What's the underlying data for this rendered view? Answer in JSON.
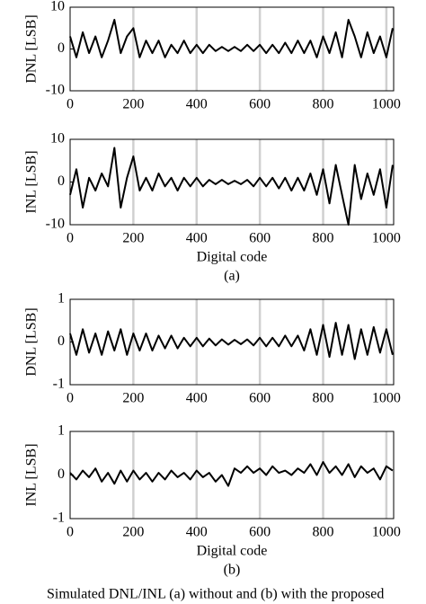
{
  "chart_data": [
    {
      "type": "line",
      "ylabel": "DNL [LSB]",
      "xlim": [
        0,
        1023
      ],
      "ylim": [
        -10,
        10
      ],
      "yticks": [
        10,
        0,
        -10
      ],
      "xticks": [
        0,
        200,
        400,
        600,
        800,
        1000
      ],
      "grid": "x",
      "color": "#000000",
      "x": [
        0,
        20,
        40,
        60,
        80,
        100,
        120,
        140,
        160,
        180,
        200,
        220,
        240,
        260,
        280,
        300,
        320,
        340,
        360,
        380,
        400,
        420,
        440,
        460,
        480,
        500,
        520,
        540,
        560,
        580,
        600,
        620,
        640,
        660,
        680,
        700,
        720,
        740,
        760,
        780,
        800,
        820,
        840,
        860,
        880,
        900,
        920,
        940,
        960,
        980,
        1000,
        1020
      ],
      "values": [
        3,
        -2,
        4,
        -1,
        3,
        -2,
        2,
        7,
        -1,
        3,
        5,
        -2,
        2,
        -1,
        2,
        -2,
        1,
        -1,
        2,
        -1,
        1,
        -1,
        1,
        -0.5,
        0.5,
        -0.5,
        0.5,
        -0.5,
        1,
        -0.5,
        1,
        -1,
        1,
        -1,
        1.5,
        -1,
        2,
        -1,
        2,
        -2,
        3,
        -1,
        4,
        -2,
        7,
        3,
        -2,
        4,
        -1,
        3,
        -2,
        5
      ]
    },
    {
      "type": "line",
      "ylabel": "INL [LSB]",
      "xlabel": "Digital code",
      "annotation": "(a)",
      "xlim": [
        0,
        1023
      ],
      "ylim": [
        -10,
        10
      ],
      "yticks": [
        10,
        0,
        -10
      ],
      "xticks": [
        0,
        200,
        400,
        600,
        800,
        1000
      ],
      "grid": "x",
      "color": "#000000",
      "x": [
        0,
        20,
        40,
        60,
        80,
        100,
        120,
        140,
        160,
        180,
        200,
        220,
        240,
        260,
        280,
        300,
        320,
        340,
        360,
        380,
        400,
        420,
        440,
        460,
        480,
        500,
        520,
        540,
        560,
        580,
        600,
        620,
        640,
        660,
        680,
        700,
        720,
        740,
        760,
        780,
        800,
        820,
        840,
        860,
        880,
        900,
        920,
        940,
        960,
        980,
        1000,
        1020
      ],
      "values": [
        -3,
        3,
        -6,
        1,
        -2,
        2,
        -1,
        8,
        -6,
        1,
        6,
        -2,
        1,
        -2,
        2,
        -1,
        1,
        -2,
        1,
        -1,
        1,
        -1,
        0.5,
        -0.5,
        0.5,
        -0.5,
        0.3,
        -0.5,
        0.5,
        -1,
        1,
        -1,
        1,
        -1.5,
        1,
        -2,
        1,
        -2,
        2,
        -3,
        3,
        -5,
        4,
        -3,
        -10,
        4,
        -4,
        2,
        -3,
        3,
        -6,
        4
      ]
    },
    {
      "type": "line",
      "ylabel": "DNL [LSB]",
      "xlim": [
        0,
        1023
      ],
      "ylim": [
        -1,
        1
      ],
      "yticks": [
        1,
        0,
        -1
      ],
      "xticks": [
        0,
        200,
        400,
        600,
        800,
        1000
      ],
      "grid": "x",
      "color": "#000000",
      "x": [
        0,
        20,
        40,
        60,
        80,
        100,
        120,
        140,
        160,
        180,
        200,
        220,
        240,
        260,
        280,
        300,
        320,
        340,
        360,
        380,
        400,
        420,
        440,
        460,
        480,
        500,
        520,
        540,
        560,
        580,
        600,
        620,
        640,
        660,
        680,
        700,
        720,
        740,
        760,
        780,
        800,
        820,
        840,
        860,
        880,
        900,
        920,
        940,
        960,
        980,
        1000,
        1020
      ],
      "values": [
        0.2,
        -0.3,
        0.3,
        -0.25,
        0.2,
        -0.3,
        0.25,
        -0.2,
        0.3,
        -0.3,
        0.2,
        -0.2,
        0.2,
        -0.2,
        0.15,
        -0.15,
        0.15,
        -0.15,
        0.1,
        -0.1,
        0.1,
        -0.1,
        0.08,
        -0.08,
        0.06,
        -0.06,
        0.05,
        -0.05,
        0.06,
        -0.08,
        0.1,
        -0.1,
        0.1,
        -0.1,
        0.15,
        -0.1,
        0.15,
        -0.2,
        0.3,
        -0.3,
        0.4,
        -0.35,
        0.45,
        -0.3,
        0.4,
        -0.4,
        0.3,
        -0.3,
        0.35,
        -0.25,
        0.3,
        -0.3
      ]
    },
    {
      "type": "line",
      "ylabel": "INL [LSB]",
      "xlabel": "Digital code",
      "annotation": "(b)",
      "xlim": [
        0,
        1023
      ],
      "ylim": [
        -1,
        1
      ],
      "yticks": [
        1,
        0,
        -1
      ],
      "xticks": [
        0,
        200,
        400,
        600,
        800,
        1000
      ],
      "grid": "x",
      "color": "#000000",
      "x": [
        0,
        20,
        40,
        60,
        80,
        100,
        120,
        140,
        160,
        180,
        200,
        220,
        240,
        260,
        280,
        300,
        320,
        340,
        360,
        380,
        400,
        420,
        440,
        460,
        480,
        500,
        520,
        540,
        560,
        580,
        600,
        620,
        640,
        660,
        680,
        700,
        720,
        740,
        760,
        780,
        800,
        820,
        840,
        860,
        880,
        900,
        920,
        940,
        960,
        980,
        1000,
        1020
      ],
      "values": [
        0.05,
        -0.1,
        0.1,
        -0.05,
        0.15,
        -0.15,
        0.05,
        -0.2,
        0.1,
        -0.15,
        0.1,
        -0.1,
        0.05,
        -0.15,
        0.05,
        -0.1,
        0.1,
        -0.05,
        0.05,
        -0.1,
        0.1,
        -0.05,
        0.05,
        -0.15,
        0.0,
        -0.25,
        0.15,
        0.05,
        0.2,
        0.05,
        0.15,
        0.0,
        0.2,
        0.05,
        0.1,
        0.0,
        0.15,
        0.05,
        0.25,
        0.0,
        0.3,
        0.05,
        0.2,
        0.0,
        0.25,
        -0.05,
        0.2,
        0.05,
        0.15,
        -0.1,
        0.2,
        0.1
      ]
    }
  ],
  "caption": "Simulated DNL/INL (a) without and (b) with the proposed"
}
